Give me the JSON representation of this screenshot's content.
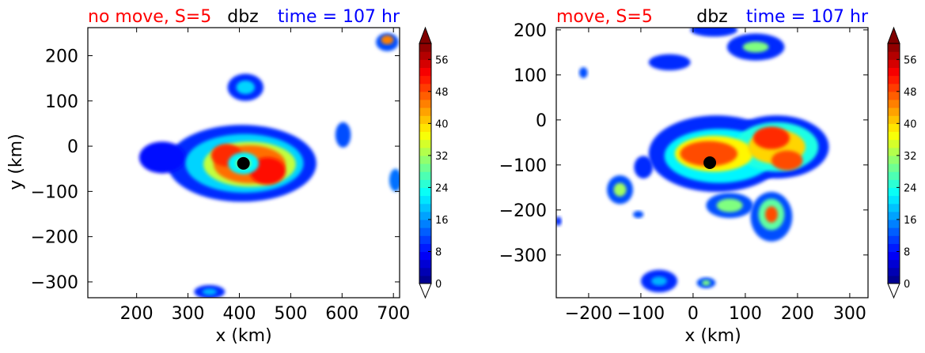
{
  "chart_data": [
    {
      "type": "heatmap",
      "title_left": "no move, S=5",
      "title_center": "dbz",
      "title_right": "time = 107 hr",
      "title_colors": {
        "left": "#ff0000",
        "center": "#000000",
        "right": "#0000ff"
      },
      "xlabel": "x (km)",
      "ylabel": "y (km)",
      "xlim": [
        105,
        712
      ],
      "ylim": [
        -335,
        262
      ],
      "xticks": [
        200,
        300,
        400,
        500,
        600,
        700
      ],
      "yticks": [
        200,
        100,
        0,
        -100,
        -200,
        -300
      ],
      "center_marker": {
        "x": 408,
        "y": -38
      },
      "colorbar": {
        "min": 0,
        "max": 60,
        "ticks": [
          0,
          8,
          16,
          24,
          32,
          40,
          48,
          56
        ],
        "extend": "both",
        "colormap": "jet"
      },
      "cells": [
        {
          "x": 405,
          "y": -38,
          "rx": 145,
          "ry": 85,
          "v": 10
        },
        {
          "x": 250,
          "y": -25,
          "rx": 45,
          "ry": 35,
          "v": 8
        },
        {
          "x": 410,
          "y": -38,
          "rx": 115,
          "ry": 65,
          "v": 20
        },
        {
          "x": 420,
          "y": -40,
          "rx": 90,
          "ry": 50,
          "v": 34
        },
        {
          "x": 420,
          "y": -40,
          "rx": 70,
          "ry": 42,
          "v": 46
        },
        {
          "x": 455,
          "y": -55,
          "rx": 35,
          "ry": 30,
          "v": 52
        },
        {
          "x": 375,
          "y": -20,
          "rx": 30,
          "ry": 25,
          "v": 50
        },
        {
          "x": 408,
          "y": -38,
          "rx": 30,
          "ry": 24,
          "v": 22
        },
        {
          "x": 408,
          "y": -38,
          "rx": 15,
          "ry": 12,
          "v": 30
        },
        {
          "x": 412,
          "y": 130,
          "rx": 35,
          "ry": 30,
          "v": 10
        },
        {
          "x": 412,
          "y": 130,
          "rx": 18,
          "ry": 15,
          "v": 20
        },
        {
          "x": 688,
          "y": 230,
          "rx": 22,
          "ry": 20,
          "v": 12
        },
        {
          "x": 688,
          "y": 235,
          "rx": 12,
          "ry": 10,
          "v": 45
        },
        {
          "x": 602,
          "y": 25,
          "rx": 15,
          "ry": 28,
          "v": 12
        },
        {
          "x": 704,
          "y": -75,
          "rx": 12,
          "ry": 25,
          "v": 14
        },
        {
          "x": 342,
          "y": -322,
          "rx": 30,
          "ry": 15,
          "v": 10
        },
        {
          "x": 342,
          "y": -322,
          "rx": 14,
          "ry": 7,
          "v": 18
        }
      ]
    },
    {
      "type": "heatmap",
      "title_left": "move, S=5",
      "title_center": "dbz",
      "title_right": "time = 107 hr",
      "title_colors": {
        "left": "#ff0000",
        "center": "#000000",
        "right": "#0000ff"
      },
      "xlabel": "x (km)",
      "ylabel": "",
      "xlim": [
        -262,
        335
      ],
      "ylim": [
        -395,
        205
      ],
      "xticks": [
        -200,
        -100,
        0,
        100,
        200,
        300
      ],
      "yticks": [
        200,
        100,
        0,
        -100,
        -200,
        -300
      ],
      "center_marker": {
        "x": 32,
        "y": -95
      },
      "colorbar": {
        "min": 0,
        "max": 60,
        "ticks": [
          0,
          8,
          16,
          24,
          32,
          40,
          48,
          56
        ],
        "extend": "both",
        "colormap": "jet"
      },
      "cells": [
        {
          "x": 45,
          "y": -75,
          "rx": 130,
          "ry": 85,
          "v": 10
        },
        {
          "x": 160,
          "y": -60,
          "rx": 100,
          "ry": 70,
          "v": 10
        },
        {
          "x": 50,
          "y": -80,
          "rx": 105,
          "ry": 60,
          "v": 22
        },
        {
          "x": 160,
          "y": -60,
          "rx": 80,
          "ry": 55,
          "v": 24
        },
        {
          "x": 40,
          "y": -75,
          "rx": 75,
          "ry": 40,
          "v": 38
        },
        {
          "x": 160,
          "y": -60,
          "rx": 55,
          "ry": 38,
          "v": 40
        },
        {
          "x": 30,
          "y": -75,
          "rx": 55,
          "ry": 28,
          "v": 48
        },
        {
          "x": 150,
          "y": -40,
          "rx": 35,
          "ry": 25,
          "v": 50
        },
        {
          "x": 180,
          "y": -90,
          "rx": 30,
          "ry": 22,
          "v": 48
        },
        {
          "x": 70,
          "y": -190,
          "rx": 45,
          "ry": 28,
          "v": 12
        },
        {
          "x": 70,
          "y": -190,
          "rx": 25,
          "ry": 15,
          "v": 30
        },
        {
          "x": 150,
          "y": -215,
          "rx": 40,
          "ry": 55,
          "v": 12
        },
        {
          "x": 150,
          "y": -210,
          "rx": 25,
          "ry": 35,
          "v": 28
        },
        {
          "x": 150,
          "y": -210,
          "rx": 12,
          "ry": 18,
          "v": 48
        },
        {
          "x": -140,
          "y": -155,
          "rx": 25,
          "ry": 32,
          "v": 12
        },
        {
          "x": -140,
          "y": -155,
          "rx": 12,
          "ry": 15,
          "v": 32
        },
        {
          "x": -95,
          "y": -105,
          "rx": 18,
          "ry": 25,
          "v": 10
        },
        {
          "x": 40,
          "y": 200,
          "rx": 45,
          "ry": 15,
          "v": 10
        },
        {
          "x": 120,
          "y": 162,
          "rx": 55,
          "ry": 30,
          "v": 10
        },
        {
          "x": 120,
          "y": 162,
          "rx": 25,
          "ry": 12,
          "v": 30
        },
        {
          "x": -45,
          "y": 128,
          "rx": 40,
          "ry": 18,
          "v": 10
        },
        {
          "x": -210,
          "y": 105,
          "rx": 8,
          "ry": 12,
          "v": 12
        },
        {
          "x": -105,
          "y": -210,
          "rx": 10,
          "ry": 8,
          "v": 12
        },
        {
          "x": -65,
          "y": -358,
          "rx": 35,
          "ry": 25,
          "v": 10
        },
        {
          "x": -65,
          "y": -358,
          "rx": 15,
          "ry": 10,
          "v": 18
        },
        {
          "x": 25,
          "y": -362,
          "rx": 18,
          "ry": 12,
          "v": 12
        },
        {
          "x": 25,
          "y": -362,
          "rx": 8,
          "ry": 6,
          "v": 30
        },
        {
          "x": -258,
          "y": -225,
          "rx": 6,
          "ry": 10,
          "v": 10
        }
      ]
    }
  ]
}
